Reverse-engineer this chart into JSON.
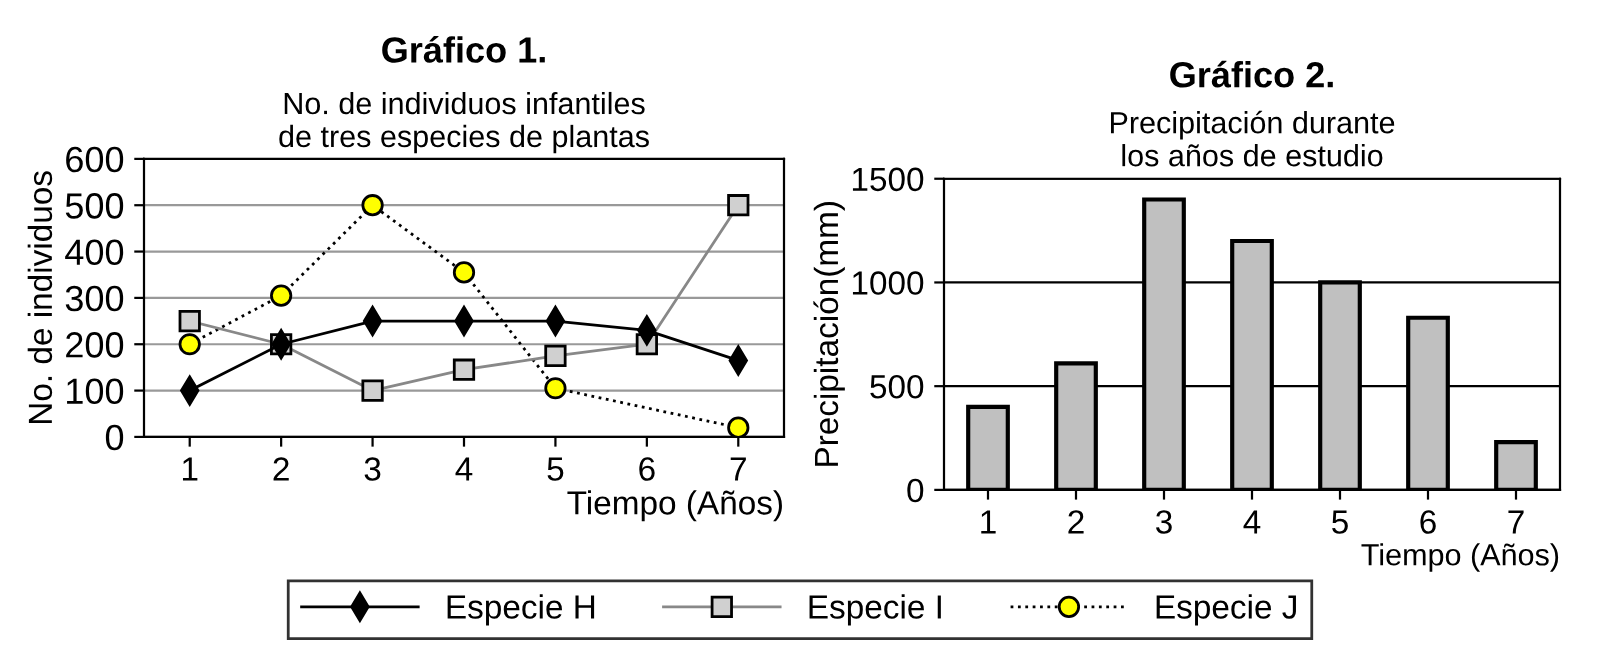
{
  "chart_data": [
    {
      "type": "line",
      "title": "Gráfico 1.",
      "subtitle": "No. de individuos infantiles\nde tres especies de plantas",
      "xlabel": "Tiempo (Años)",
      "ylabel": "No. de individuos",
      "categories": [
        "1",
        "2",
        "3",
        "4",
        "5",
        "6",
        "7"
      ],
      "series": [
        {
          "name": "Especie H",
          "color": "#000000",
          "marker": "diamond",
          "line_style": "solid",
          "values": [
            100,
            200,
            250,
            250,
            250,
            230,
            165
          ]
        },
        {
          "name": "Especie I",
          "color": "#d0d0d0",
          "marker": "square",
          "line_style": "solid",
          "values": [
            250,
            200,
            100,
            145,
            175,
            200,
            500
          ]
        },
        {
          "name": "Especie J",
          "color": "#ffff00",
          "marker": "circle",
          "line_style": "dotted",
          "values": [
            200,
            305,
            500,
            355,
            105,
            null,
            20
          ]
        }
      ],
      "ylim": [
        0,
        600
      ],
      "yticks": [
        0,
        100,
        200,
        300,
        400,
        500,
        600
      ],
      "grid": "y",
      "legend": "bottom"
    },
    {
      "type": "bar",
      "title": "Gráfico 2.",
      "subtitle": "Precipitación durante\nlos años de estudio",
      "xlabel": "Tiempo (Años)",
      "ylabel": "Precipitación(mm)",
      "categories": [
        "1",
        "2",
        "3",
        "4",
        "5",
        "6",
        "7"
      ],
      "values": [
        400,
        610,
        1400,
        1200,
        1000,
        830,
        230
      ],
      "color": "#c0c0c0",
      "ylim": [
        0,
        1500
      ],
      "yticks": [
        0,
        500,
        1000,
        1500
      ],
      "grid": "y"
    }
  ]
}
